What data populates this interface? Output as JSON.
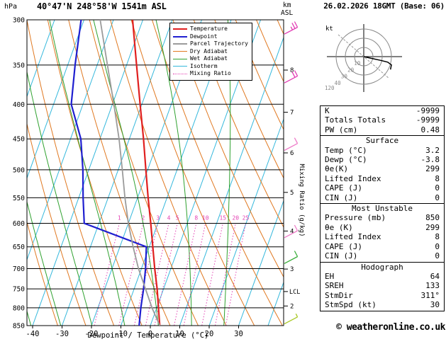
{
  "header": {
    "pressure_unit": "hPa",
    "station": "40°47'N 248°58'W 1541m ASL",
    "alt_unit_top": "km",
    "alt_unit_bottom": "ASL",
    "datetime": "26.02.2026 18GMT (Base: 06)"
  },
  "colors": {
    "temperature": "#e01f1f",
    "dewpoint": "#1f1fd0",
    "parcel": "#9b9b9b",
    "dry_adiabat": "#e07820",
    "wet_adiabat": "#2fa12f",
    "isotherm": "#35b8dc",
    "mixing_ratio": "#e33fb3",
    "grid": "#000000"
  },
  "legend": {
    "items": [
      {
        "label": "Temperature",
        "color": "#e01f1f",
        "style": "solid",
        "width": 2
      },
      {
        "label": "Dewpoint",
        "color": "#1f1fd0",
        "style": "solid",
        "width": 2
      },
      {
        "label": "Parcel Trajectory",
        "color": "#9b9b9b",
        "style": "solid",
        "width": 2
      },
      {
        "label": "Dry Adiabat",
        "color": "#e07820",
        "style": "solid",
        "width": 1
      },
      {
        "label": "Wet Adiabat",
        "color": "#2fa12f",
        "style": "solid",
        "width": 1
      },
      {
        "label": "Isotherm",
        "color": "#35b8dc",
        "style": "solid",
        "width": 1
      },
      {
        "label": "Mixing Ratio",
        "color": "#e33fb3",
        "style": "dotted",
        "width": 1
      }
    ]
  },
  "axes": {
    "xlabel": "Dewpoint / Temperature (°C)",
    "x_ticks": [
      -40,
      -30,
      -20,
      -10,
      0,
      10,
      20,
      30
    ],
    "pressure_ticks": [
      300,
      350,
      400,
      450,
      500,
      550,
      600,
      650,
      700,
      750,
      800,
      850
    ],
    "km_ticks": [
      [
        2,
        795
      ],
      [
        3,
        701
      ],
      [
        4,
        616
      ],
      [
        5,
        540
      ],
      [
        6,
        472
      ],
      [
        7,
        411
      ],
      [
        8,
        356
      ]
    ],
    "mixing_ratio_axis_label": "Mixing Ratio (g/kg)",
    "lcl_label": "LCL",
    "lcl_pressure": 757
  },
  "chart_data": {
    "type": "line",
    "variant": "skew-t-log-p",
    "title": "40°47'N 248°58'W 1541m ASL",
    "pressure_range_hpa": [
      300,
      850
    ],
    "temp_axis_ticks_c": [
      -40,
      -30,
      -20,
      -10,
      0,
      10,
      20,
      30
    ],
    "isotherm_step_c": 10,
    "dry_adiabat_step_c": 10,
    "wet_adiabat_step_c": 10,
    "mixing_ratio_lines_g_per_kg": [
      1,
      2,
      3,
      4,
      5,
      8,
      10,
      15,
      20,
      25
    ],
    "series": [
      {
        "name": "Temperature",
        "color": "#e01f1f",
        "points_p_hpa_t_c": [
          [
            850,
            3.2
          ],
          [
            800,
            0.6
          ],
          [
            750,
            -2.2
          ],
          [
            700,
            -5.5
          ],
          [
            650,
            -8.8
          ],
          [
            600,
            -12.4
          ],
          [
            550,
            -16.4
          ],
          [
            500,
            -20.6
          ],
          [
            450,
            -25.2
          ],
          [
            400,
            -30.6
          ],
          [
            350,
            -36.6
          ],
          [
            300,
            -43.5
          ]
        ]
      },
      {
        "name": "Dewpoint",
        "color": "#1f1fd0",
        "points_p_hpa_t_c": [
          [
            850,
            -3.8
          ],
          [
            800,
            -5.4
          ],
          [
            750,
            -6.8
          ],
          [
            700,
            -8.6
          ],
          [
            650,
            -11.0
          ],
          [
            600,
            -35.0
          ],
          [
            550,
            -38.5
          ],
          [
            500,
            -42.0
          ],
          [
            450,
            -46.5
          ],
          [
            400,
            -54.0
          ],
          [
            350,
            -57.5
          ],
          [
            300,
            -61.0
          ]
        ]
      },
      {
        "name": "Parcel Trajectory",
        "color": "#9b9b9b",
        "points_p_hpa_t_c": [
          [
            850,
            3.2
          ],
          [
            800,
            -1.6
          ],
          [
            757,
            -5.5
          ],
          [
            700,
            -11.0
          ],
          [
            650,
            -15.5
          ],
          [
            600,
            -20.0
          ],
          [
            550,
            -24.3
          ],
          [
            500,
            -28.6
          ],
          [
            450,
            -33.5
          ],
          [
            400,
            -39.5
          ],
          [
            350,
            -46.5
          ],
          [
            300,
            -54.5
          ]
        ]
      }
    ],
    "wind_barbs": [
      {
        "pressure_hpa": 315,
        "speed_kt": 25,
        "color": "#e23cb4"
      },
      {
        "pressure_hpa": 372,
        "speed_kt": 20,
        "color": "#e23cb4"
      },
      {
        "pressure_hpa": 468,
        "speed_kt": 10,
        "color": "#ee7cc8"
      },
      {
        "pressure_hpa": 630,
        "speed_kt": 10,
        "color": "#ee7cc8"
      },
      {
        "pressure_hpa": 688,
        "speed_kt": 10,
        "color": "#3aae3a"
      },
      {
        "pressure_hpa": 845,
        "speed_kt": 5,
        "color": "#a8c824"
      }
    ]
  },
  "hodograph": {
    "unit_label": "kt",
    "ring_step_kt": 10,
    "ring_labels": [
      "10",
      "20",
      "30",
      "40"
    ],
    "azimuth_label": "120",
    "trace_uv_kt": [
      [
        0,
        0
      ],
      [
        9,
        -2
      ],
      [
        18,
        -4
      ],
      [
        26,
        -6
      ],
      [
        30,
        -9
      ],
      [
        29,
        -14
      ]
    ]
  },
  "stats": {
    "sections": [
      {
        "title": null,
        "rows": [
          [
            "K",
            "-9999"
          ],
          [
            "Totals Totals",
            "-9999"
          ],
          [
            "PW (cm)",
            "0.48"
          ]
        ]
      },
      {
        "title": "Surface",
        "rows": [
          [
            "Temp (°C)",
            "3.2"
          ],
          [
            "Dewp (°C)",
            "-3.8"
          ],
          [
            "θe(K)",
            "299"
          ],
          [
            "Lifted Index",
            "8"
          ],
          [
            "CAPE (J)",
            "0"
          ],
          [
            "CIN (J)",
            "0"
          ]
        ]
      },
      {
        "title": "Most Unstable",
        "rows": [
          [
            "Pressure (mb)",
            "850"
          ],
          [
            "θe (K)",
            "299"
          ],
          [
            "Lifted Index",
            "8"
          ],
          [
            "CAPE (J)",
            "0"
          ],
          [
            "CIN (J)",
            "0"
          ]
        ]
      },
      {
        "title": "Hodograph",
        "rows": [
          [
            "EH",
            "64"
          ],
          [
            "SREH",
            "133"
          ],
          [
            "StmDir",
            "311°"
          ],
          [
            "StmSpd (kt)",
            "30"
          ]
        ]
      }
    ]
  },
  "footer": {
    "credit": "© weatheronline.co.uk"
  }
}
